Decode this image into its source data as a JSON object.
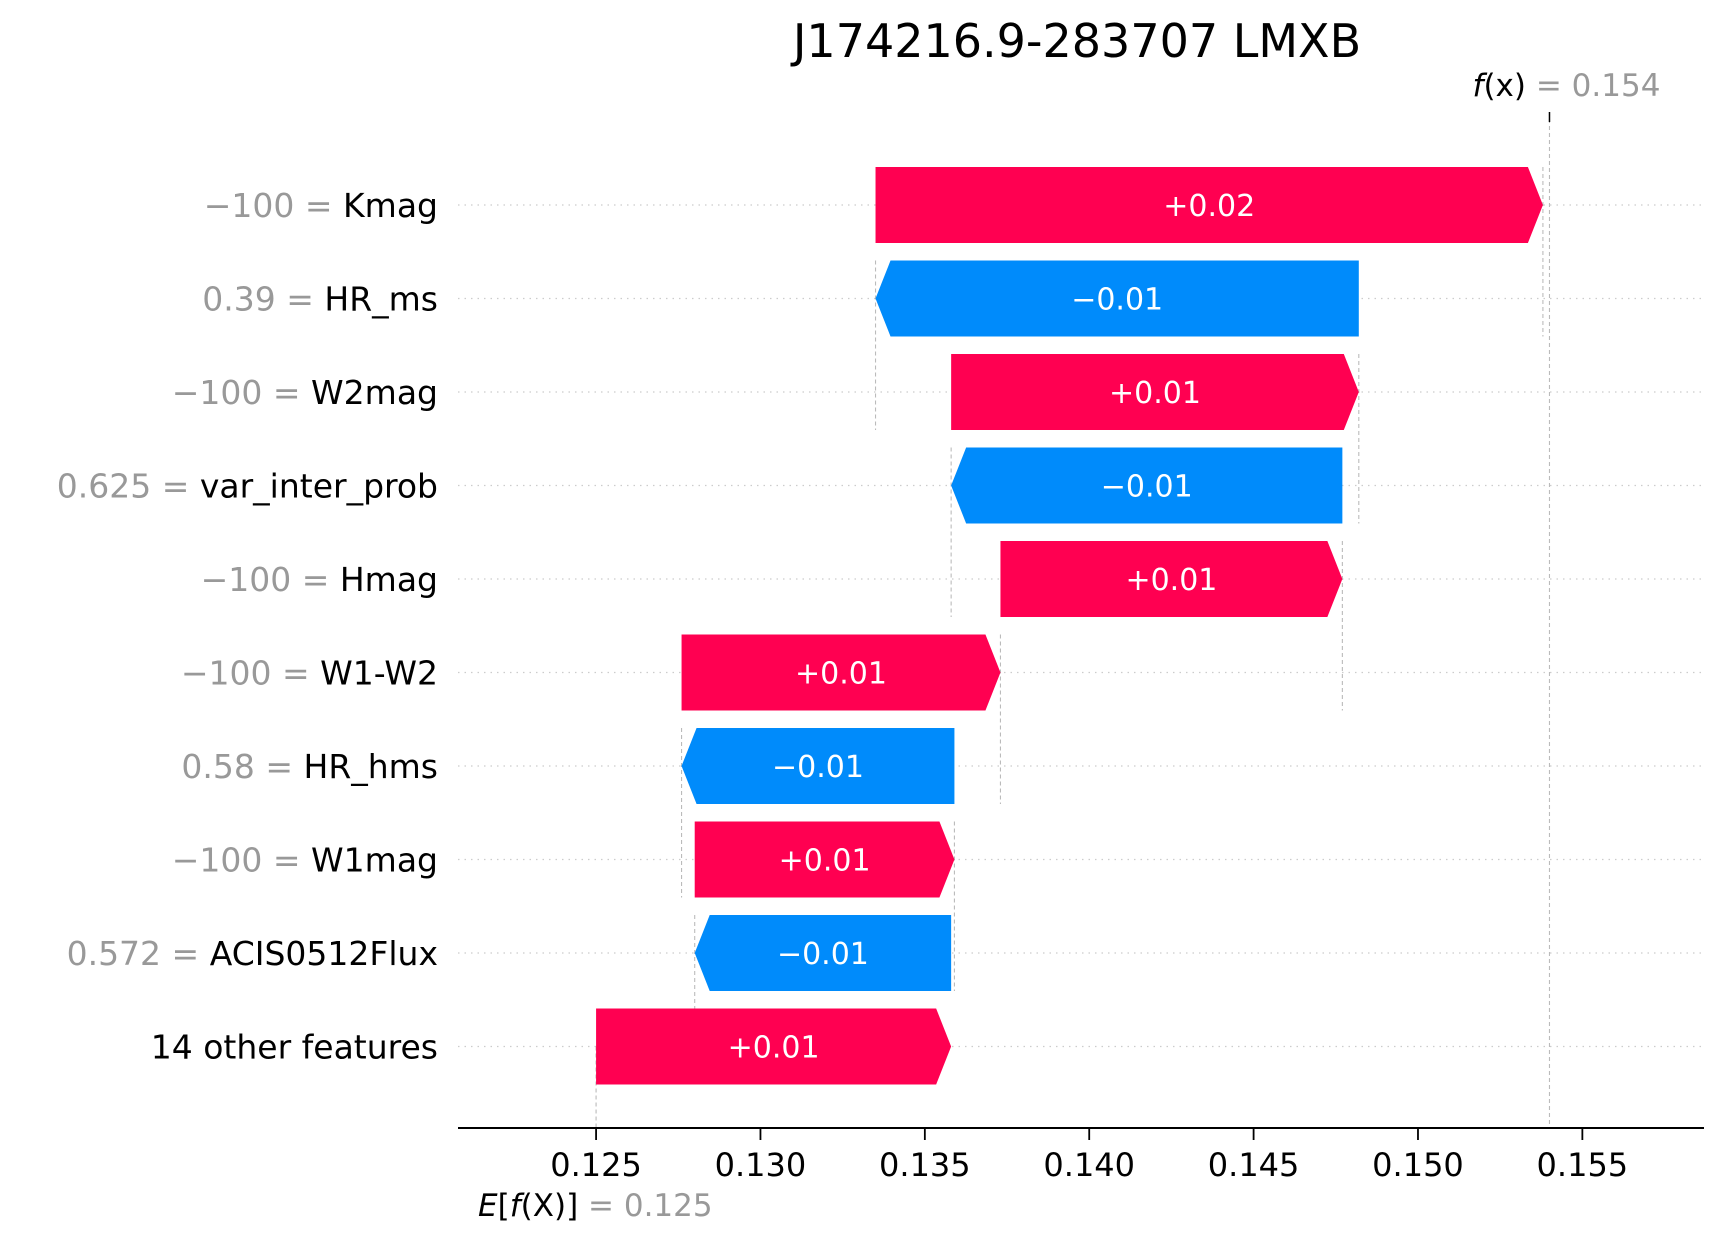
{
  "chart_data": {
    "type": "waterfall",
    "title": "J174216.9-283707 LMXB",
    "base_value": 0.125,
    "final_value": 0.154,
    "base_label": {
      "prefix": "E",
      "open": "[",
      "f": "f",
      "arg": "(X)",
      "close": "]",
      "eq": " = ",
      "value": "0.125"
    },
    "final_label": {
      "f": "f",
      "arg": "(x)",
      "eq": " = ",
      "value": "0.154"
    },
    "xlim": [
      0.1208,
      0.1587
    ],
    "xticks": [
      "0.125",
      "0.130",
      "0.135",
      "0.140",
      "0.145",
      "0.150",
      "0.155"
    ],
    "features": [
      {
        "name": "Kmag",
        "value": "−100",
        "eq": " = ",
        "start": 0.1335,
        "end": 0.1538,
        "label": "+0.02"
      },
      {
        "name": "HR_ms",
        "value": "0.39",
        "eq": " = ",
        "start": 0.1482,
        "end": 0.1335,
        "label": "−0.01"
      },
      {
        "name": "W2mag",
        "value": "−100",
        "eq": " = ",
        "start": 0.1358,
        "end": 0.1482,
        "label": "+0.01"
      },
      {
        "name": "var_inter_prob",
        "value": "0.625",
        "eq": " = ",
        "start": 0.1477,
        "end": 0.1358,
        "label": "−0.01"
      },
      {
        "name": "Hmag",
        "value": "−100",
        "eq": " = ",
        "start": 0.1373,
        "end": 0.1477,
        "label": "+0.01"
      },
      {
        "name": "W1-W2",
        "value": "−100",
        "eq": " = ",
        "start": 0.1276,
        "end": 0.1373,
        "label": "+0.01"
      },
      {
        "name": "HR_hms",
        "value": "0.58",
        "eq": " = ",
        "start": 0.1359,
        "end": 0.1276,
        "label": "−0.01"
      },
      {
        "name": "W1mag",
        "value": "−100",
        "eq": " = ",
        "start": 0.128,
        "end": 0.1359,
        "label": "+0.01"
      },
      {
        "name": "ACIS0512Flux",
        "value": "0.572",
        "eq": " = ",
        "start": 0.1358,
        "end": 0.128,
        "label": "−0.01"
      },
      {
        "name": "14 other features",
        "value": "",
        "eq": "",
        "start": 0.125,
        "end": 0.1358,
        "label": "+0.01"
      }
    ],
    "colors": {
      "positive": "#ff0051",
      "negative": "#008bfb",
      "value_text": "#999999",
      "guide": "#bbbbbb",
      "grid": "#cccccc"
    }
  }
}
